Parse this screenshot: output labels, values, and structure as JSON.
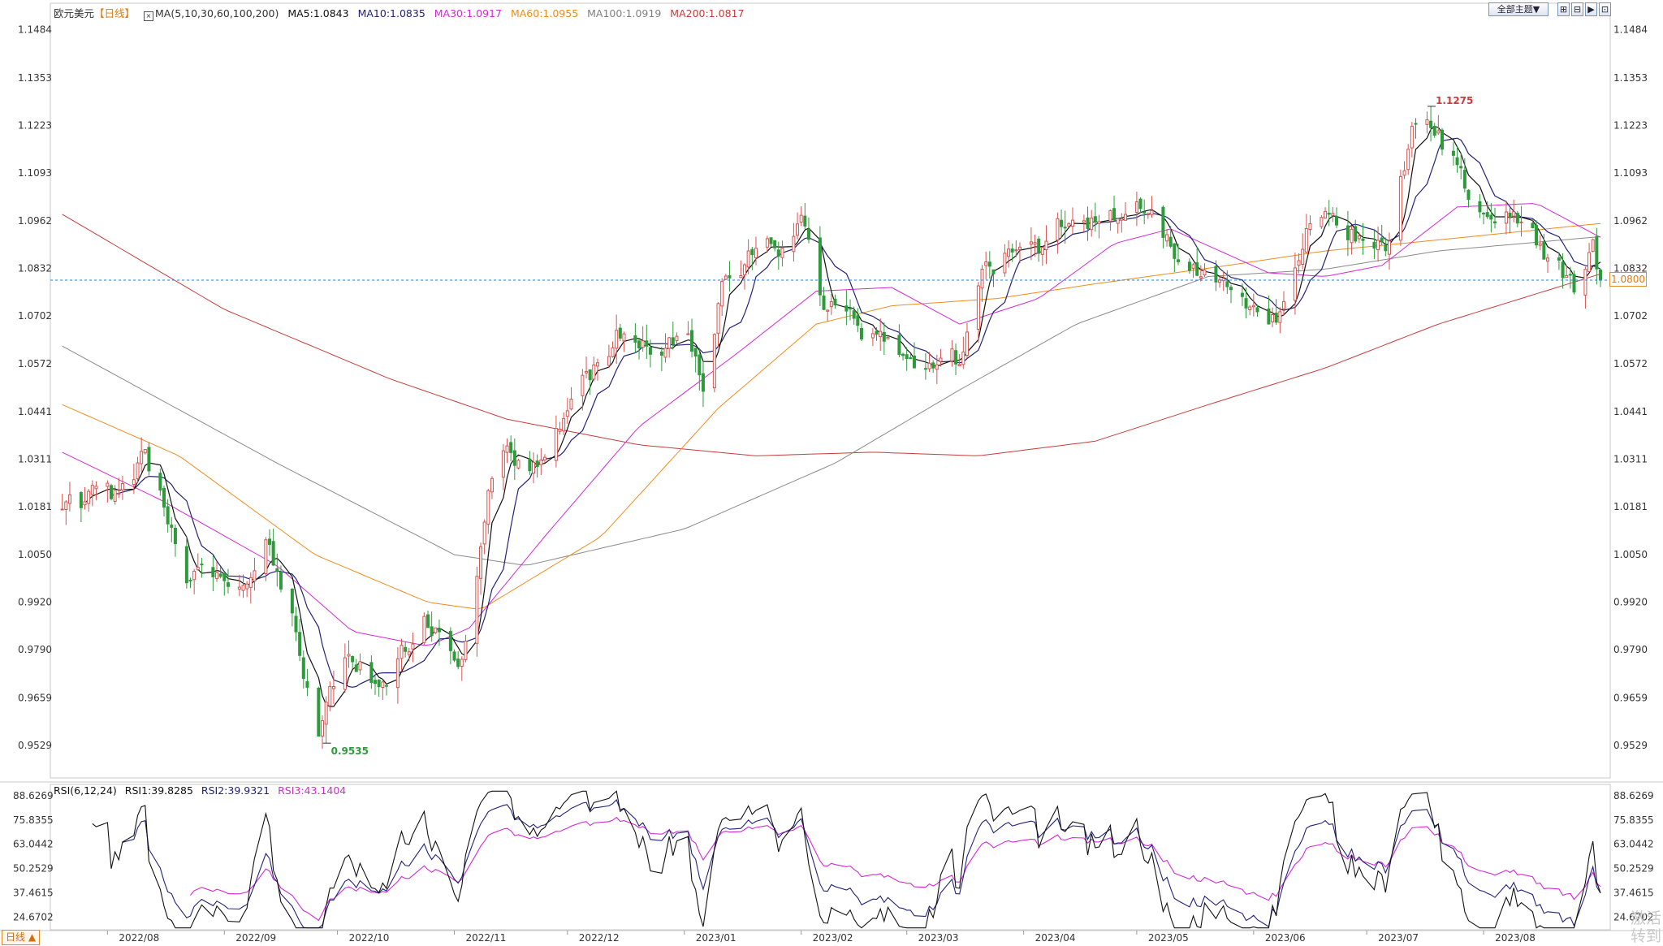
{
  "header": {
    "instrument": "欧元美元",
    "period_tag": "【日线】",
    "ma_params": "MA(5,10,30,60,100,200)",
    "ma_values": [
      {
        "label": "MA5:1.0843",
        "color": "#111111"
      },
      {
        "label": "MA10:1.0835",
        "color": "#22227a"
      },
      {
        "label": "MA30:1.0917",
        "color": "#d42ad4"
      },
      {
        "label": "MA60:1.0955",
        "color": "#f08c1e"
      },
      {
        "label": "MA100:1.0919",
        "color": "#808080"
      },
      {
        "label": "MA200:1.0817",
        "color": "#c83c3c"
      }
    ]
  },
  "toolbar": {
    "theme_label": "全部主题▼",
    "btn1": "⊞",
    "btn2": "⊟",
    "btn3": "▶",
    "btn4": "⊡"
  },
  "rsi": {
    "params": "RSI(6,12,24)",
    "rsi1": "RSI1:39.8285",
    "rsi2": "RSI2:39.9321",
    "rsi3": "RSI3:43.1404",
    "colors": [
      "#111111",
      "#22227a",
      "#d42ad4"
    ]
  },
  "current_price": "1.0800",
  "period_selector": "日线 ▲",
  "watermark": "激活\n转到",
  "chart_data": {
    "type": "candlestick",
    "title": "欧元美元【日线】",
    "price_axis": [
      "1.1484",
      "1.1353",
      "1.1223",
      "1.1093",
      "1.0962",
      "1.0832",
      "1.0702",
      "1.0572",
      "1.0441",
      "1.0311",
      "1.0181",
      "1.0050",
      "0.9920",
      "0.9790",
      "0.9659",
      "0.9529"
    ],
    "price_range": [
      0.944,
      1.153
    ],
    "rsi_axis": [
      "88.6269",
      "75.8355",
      "63.0442",
      "50.2529",
      "37.4615",
      "24.6702"
    ],
    "rsi_range": [
      18,
      92
    ],
    "x_labels": [
      "2022/08",
      "2022/09",
      "2022/10",
      "2022/11",
      "2022/12",
      "2023/01",
      "2023/02",
      "2023/03",
      "2023/04",
      "2023/05",
      "2023/06",
      "2023/07",
      "2023/08"
    ],
    "annotations": [
      {
        "text": "1.1275",
        "value": 1.1275,
        "date": "2023-07-18",
        "type": "high"
      },
      {
        "text": "0.9535",
        "value": 0.9535,
        "date": "2022-09-28",
        "type": "low"
      }
    ],
    "current_price": 1.08,
    "close_anchors": [
      [
        "2022-07-25",
        1.02
      ],
      [
        "2022-08-01",
        1.022
      ],
      [
        "2022-08-08",
        1.021
      ],
      [
        "2022-08-11",
        1.032
      ],
      [
        "2022-08-22",
        1.0
      ],
      [
        "2022-08-29",
        0.998
      ],
      [
        "2022-09-07",
        0.993
      ],
      [
        "2022-09-12",
        1.012
      ],
      [
        "2022-09-19",
        0.99
      ],
      [
        "2022-09-26",
        0.956
      ],
      [
        "2022-10-03",
        0.979
      ],
      [
        "2022-10-13",
        0.968
      ],
      [
        "2022-10-24",
        0.99
      ],
      [
        "2022-11-01",
        0.978
      ],
      [
        "2022-11-03",
        0.975
      ],
      [
        "2022-11-10",
        1.021
      ],
      [
        "2022-11-15",
        1.035
      ],
      [
        "2022-11-21",
        1.025
      ],
      [
        "2022-11-30",
        1.041
      ],
      [
        "2022-12-05",
        1.051
      ],
      [
        "2022-12-14",
        1.064
      ],
      [
        "2022-12-20",
        1.063
      ],
      [
        "2023-01-02",
        1.065
      ],
      [
        "2023-01-06",
        1.053
      ],
      [
        "2023-01-12",
        1.083
      ],
      [
        "2023-01-26",
        1.089
      ],
      [
        "2023-02-02",
        1.095
      ],
      [
        "2023-02-07",
        1.072
      ],
      [
        "2023-02-15",
        1.068
      ],
      [
        "2023-02-27",
        1.059
      ],
      [
        "2023-03-08",
        1.054
      ],
      [
        "2023-03-15",
        1.058
      ],
      [
        "2023-03-22",
        1.082
      ],
      [
        "2023-03-30",
        1.088
      ],
      [
        "2023-04-05",
        1.089
      ],
      [
        "2023-04-14",
        1.099
      ],
      [
        "2023-04-25",
        1.097
      ],
      [
        "2023-05-04",
        1.101
      ],
      [
        "2023-05-12",
        1.085
      ],
      [
        "2023-05-19",
        1.08
      ],
      [
        "2023-05-31",
        1.069
      ],
      [
        "2023-06-07",
        1.07
      ],
      [
        "2023-06-15",
        1.094
      ],
      [
        "2023-06-22",
        1.096
      ],
      [
        "2023-06-30",
        1.091
      ],
      [
        "2023-07-06",
        1.089
      ],
      [
        "2023-07-13",
        1.122
      ],
      [
        "2023-07-18",
        1.124
      ],
      [
        "2023-07-26",
        1.109
      ],
      [
        "2023-08-02",
        1.096
      ],
      [
        "2023-08-10",
        1.098
      ],
      [
        "2023-08-18",
        1.087
      ],
      [
        "2023-08-25",
        1.079
      ],
      [
        "2023-08-30",
        1.092
      ],
      [
        "2023-09-01",
        1.08
      ]
    ],
    "ma_end_values": {
      "ma30": 1.0917,
      "ma60": 1.0955,
      "ma100": 1.0919,
      "ma200": 1.0817
    },
    "ma200_anchors": [
      [
        "2022-07-20",
        1.098
      ],
      [
        "2022-09-01",
        1.072
      ],
      [
        "2022-10-15",
        1.053
      ],
      [
        "2022-11-15",
        1.042
      ],
      [
        "2022-12-20",
        1.035
      ],
      [
        "2023-01-20",
        1.032
      ],
      [
        "2023-02-20",
        1.033
      ],
      [
        "2023-03-20",
        1.032
      ],
      [
        "2023-04-20",
        1.036
      ],
      [
        "2023-05-20",
        1.046
      ],
      [
        "2023-06-20",
        1.056
      ],
      [
        "2023-07-20",
        1.068
      ],
      [
        "2023-09-01",
        1.0817
      ]
    ],
    "ma100_anchors": [
      [
        "2022-07-20",
        1.062
      ],
      [
        "2022-09-15",
        1.03
      ],
      [
        "2022-11-01",
        1.005
      ],
      [
        "2022-11-20",
        1.002
      ],
      [
        "2023-01-01",
        1.012
      ],
      [
        "2023-02-10",
        1.03
      ],
      [
        "2023-03-15",
        1.05
      ],
      [
        "2023-04-15",
        1.068
      ],
      [
        "2023-05-20",
        1.081
      ],
      [
        "2023-06-20",
        1.083
      ],
      [
        "2023-07-20",
        1.088
      ],
      [
        "2023-09-01",
        1.0919
      ]
    ],
    "ma60_anchors": [
      [
        "2022-07-20",
        1.046
      ],
      [
        "2022-08-20",
        1.032
      ],
      [
        "2022-09-25",
        1.005
      ],
      [
        "2022-10-25",
        0.992
      ],
      [
        "2022-11-08",
        0.99
      ],
      [
        "2022-12-10",
        1.01
      ],
      [
        "2023-01-10",
        1.045
      ],
      [
        "2023-02-05",
        1.068
      ],
      [
        "2023-02-25",
        1.073
      ],
      [
        "2023-03-25",
        1.075
      ],
      [
        "2023-04-20",
        1.079
      ],
      [
        "2023-05-25",
        1.084
      ],
      [
        "2023-06-20",
        1.088
      ],
      [
        "2023-07-20",
        1.091
      ],
      [
        "2023-09-01",
        1.0955
      ]
    ],
    "ma30_anchors": [
      [
        "2022-07-20",
        1.033
      ],
      [
        "2022-08-15",
        1.02
      ],
      [
        "2022-09-15",
        1.002
      ],
      [
        "2022-10-05",
        0.984
      ],
      [
        "2022-10-25",
        0.98
      ],
      [
        "2022-11-05",
        0.985
      ],
      [
        "2022-11-25",
        1.01
      ],
      [
        "2022-12-20",
        1.04
      ],
      [
        "2023-01-15",
        1.06
      ],
      [
        "2023-02-05",
        1.077
      ],
      [
        "2023-02-25",
        1.078
      ],
      [
        "2023-03-15",
        1.068
      ],
      [
        "2023-04-05",
        1.075
      ],
      [
        "2023-04-25",
        1.09
      ],
      [
        "2023-05-10",
        1.094
      ],
      [
        "2023-06-05",
        1.082
      ],
      [
        "2023-06-20",
        1.081
      ],
      [
        "2023-07-05",
        1.084
      ],
      [
        "2023-07-25",
        1.1
      ],
      [
        "2023-08-15",
        1.101
      ],
      [
        "2023-09-01",
        1.0917
      ]
    ],
    "rsi_end_values": {
      "rsi1": 39.8285,
      "rsi2": 39.9321,
      "rsi3": 43.1404
    }
  }
}
